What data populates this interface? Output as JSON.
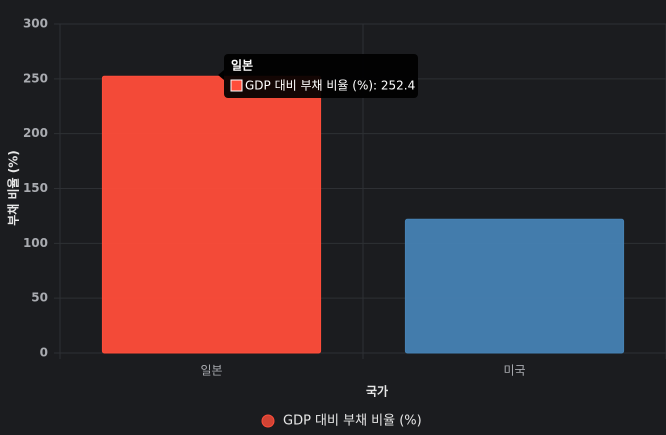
{
  "chart_data": {
    "type": "bar",
    "categories": [
      "일본",
      "미국"
    ],
    "series": [
      {
        "name": "GDP 대비 부채 비율 (%)",
        "colors": [
          "#ff4d3a",
          "#4682b4"
        ],
        "values": [
          252.4,
          122
        ]
      }
    ],
    "ylim": [
      0,
      300
    ],
    "yticks": [
      0,
      50,
      100,
      150,
      200,
      250,
      300
    ],
    "grid": true,
    "y_label": "부채 비율 (%)",
    "x_label": "국가",
    "legend": "bottom",
    "tooltip": {
      "title": "일본",
      "label": "GDP 대비 부채 비율 (%): 252.4"
    }
  }
}
